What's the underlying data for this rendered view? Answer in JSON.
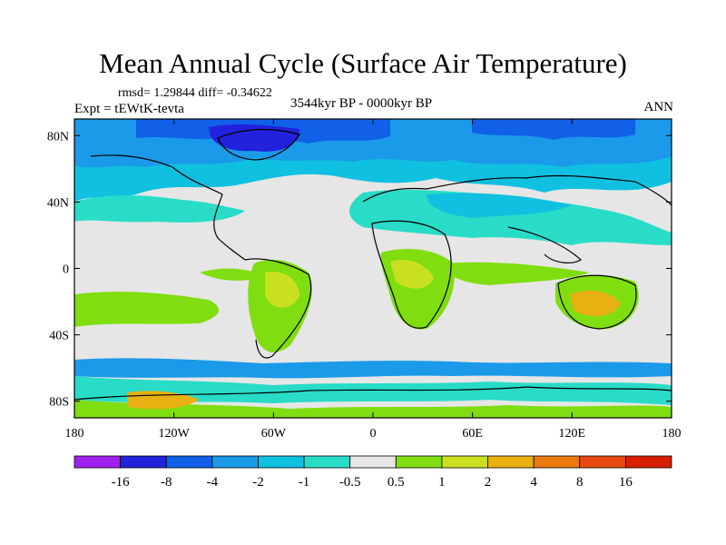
{
  "title": "Mean Annual Cycle (Surface Air Temperature)",
  "stats_line": "rmsd= 1.29844 diff= -0.34622",
  "experiment_label": "Expt = tEWtK-tevta",
  "period_label": "3544kyr BP - 0000kyr BP",
  "season_label": "ANN",
  "chart_data": {
    "type": "heatmap",
    "title": "Mean Annual Cycle (Surface Air Temperature)",
    "xlabel": "",
    "ylabel": "",
    "xlim": [
      -180,
      180
    ],
    "ylim": [
      -90,
      90
    ],
    "x_ticks": [
      {
        "value": -180,
        "label": "180"
      },
      {
        "value": -120,
        "label": "120W"
      },
      {
        "value": -60,
        "label": "60W"
      },
      {
        "value": 0,
        "label": "0"
      },
      {
        "value": 60,
        "label": "60E"
      },
      {
        "value": 120,
        "label": "120E"
      },
      {
        "value": 180,
        "label": "180"
      }
    ],
    "y_ticks": [
      {
        "value": 80,
        "label": "80N"
      },
      {
        "value": 40,
        "label": "40N"
      },
      {
        "value": 0,
        "label": "0"
      },
      {
        "value": -40,
        "label": "40S"
      },
      {
        "value": -80,
        "label": "80S"
      }
    ],
    "colorbar": {
      "levels": [
        "-16",
        "-8",
        "-4",
        "-2",
        "-1",
        "-0.5",
        "0.5",
        "1",
        "2",
        "4",
        "8",
        "16"
      ],
      "colors": [
        "#a020f0",
        "#2222dd",
        "#1060e8",
        "#1a9ae8",
        "#10c0e0",
        "#28dcc8",
        "#e6e6e6",
        "#80dd10",
        "#c8e020",
        "#e8b010",
        "#e87a10",
        "#e84810",
        "#d82000"
      ]
    }
  }
}
